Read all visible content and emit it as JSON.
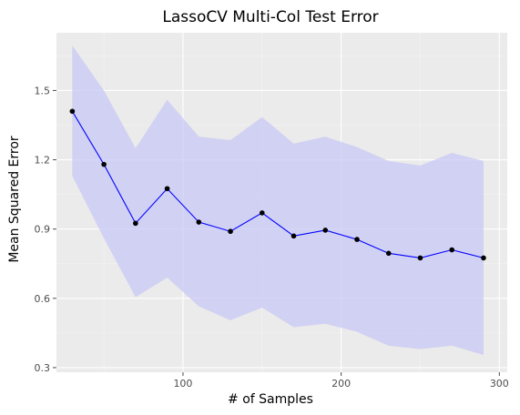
{
  "chart_data": {
    "type": "line",
    "title": "LassoCV Multi-Col Test Error",
    "xlabel": "# of Samples",
    "ylabel": "Mean Squared Error",
    "xlim": [
      20,
      305
    ],
    "ylim": [
      0.28,
      1.75
    ],
    "xticks": [
      100,
      200,
      300
    ],
    "yticks": [
      0.3,
      0.6,
      0.9,
      1.2,
      1.5
    ],
    "xtick_labels": [
      "100",
      "200",
      "300"
    ],
    "ytick_labels": [
      "0.3",
      "0.6",
      "0.9",
      "1.2",
      "1.5"
    ],
    "grid": true,
    "legend": "none",
    "series": [
      {
        "x": [
          30,
          50,
          70,
          90,
          110,
          130,
          150,
          170,
          190,
          210,
          230,
          250,
          270,
          290
        ],
        "values": [
          1.41,
          1.18,
          0.925,
          1.075,
          0.93,
          0.89,
          0.97,
          0.87,
          0.895,
          0.855,
          0.795,
          0.775,
          0.81,
          0.775
        ],
        "lower": [
          1.13,
          0.86,
          0.605,
          0.69,
          0.565,
          0.505,
          0.56,
          0.475,
          0.49,
          0.455,
          0.395,
          0.38,
          0.395,
          0.355
        ],
        "upper": [
          1.695,
          1.5,
          1.25,
          1.46,
          1.3,
          1.285,
          1.385,
          1.27,
          1.3,
          1.255,
          1.195,
          1.175,
          1.23,
          1.195
        ]
      }
    ],
    "colors": {
      "panel": "#ebebeb",
      "grid_major": "#ffffff",
      "grid_minor": "#f5f5f5",
      "line": "#0000ff",
      "point": "#000000",
      "ribbon": "#c8c8f5",
      "tick": "#4d4d4d"
    }
  }
}
